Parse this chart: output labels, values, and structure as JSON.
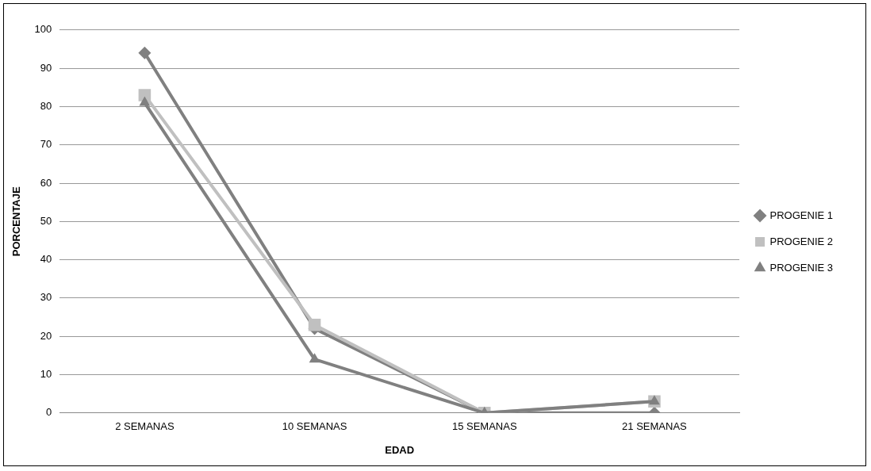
{
  "chart_data": {
    "type": "line",
    "xlabel": "EDAD",
    "ylabel": "PORCENTAJE",
    "categories": [
      "2 SEMANAS",
      "10 SEMANAS",
      "15 SEMANAS",
      "21 SEMANAS"
    ],
    "series": [
      {
        "name": "PROGENIE 1",
        "color": "#808080",
        "marker": "diamond",
        "values": [
          94,
          22,
          0,
          0
        ]
      },
      {
        "name": "PROGENIE 2",
        "color": "#c0c0c0",
        "marker": "square",
        "values": [
          83,
          23,
          0,
          3
        ]
      },
      {
        "name": "PROGENIE 3",
        "color": "#808080",
        "marker": "triangle",
        "values": [
          81,
          14,
          0,
          3
        ]
      }
    ],
    "ylim": [
      0,
      100
    ],
    "yticks": [
      0,
      10,
      20,
      30,
      40,
      50,
      60,
      70,
      80,
      90,
      100
    ],
    "grid": "y",
    "legend": "right",
    "line_style": "solid"
  }
}
